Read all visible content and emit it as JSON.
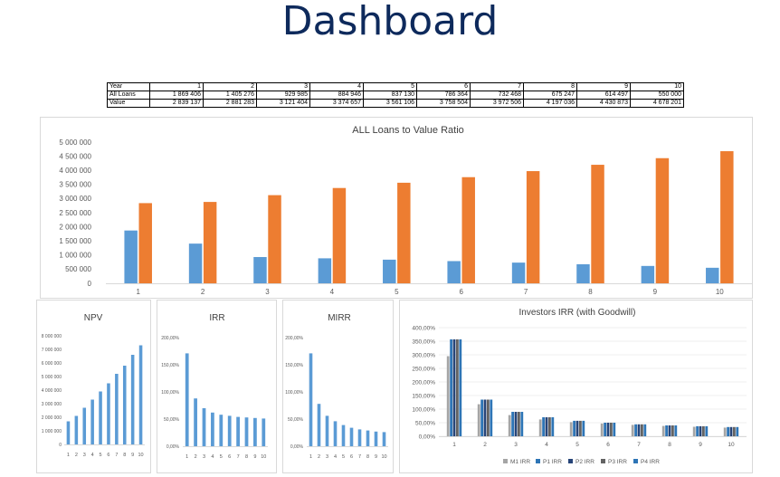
{
  "page": {
    "title": "Dashboard"
  },
  "table": {
    "rows": [
      {
        "label": "Year",
        "values": [
          "1",
          "2",
          "3",
          "4",
          "5",
          "6",
          "7",
          "8",
          "9",
          "10"
        ]
      },
      {
        "label": "All Loans",
        "values": [
          "1 869 406",
          "1 405 276",
          "929 985",
          "884 946",
          "837 130",
          "786 364",
          "732 468",
          "675 247",
          "614 497",
          "550 000"
        ]
      },
      {
        "label": "Value",
        "values": [
          "2 839 137",
          "2 881 283",
          "3 121 404",
          "3 374 657",
          "3 561 106",
          "3 758 504",
          "3 972 506",
          "4 197 036",
          "4 430 873",
          "4 678 201"
        ]
      }
    ]
  },
  "colors": {
    "blue": "#5b9bd5",
    "orange": "#ed7d31",
    "title": "#0e2a5c",
    "grey": "#a5a5a5",
    "darkblue": "#264478",
    "midblue": "#2e75b6",
    "darkgrey": "#636363"
  },
  "chart_data": [
    {
      "type": "bar",
      "title": "ALL Loans to Value Ratio",
      "categories": [
        "1",
        "2",
        "3",
        "4",
        "5",
        "6",
        "7",
        "8",
        "9",
        "10"
      ],
      "series": [
        {
          "values": [
            1869406,
            1405276,
            929985,
            884946,
            837130,
            786364,
            732468,
            675247,
            614497,
            550000
          ]
        },
        {
          "values": [
            2839137,
            2881283,
            3121404,
            3374657,
            3561106,
            3758504,
            3972506,
            4197036,
            4430873,
            4678201
          ]
        }
      ],
      "ylim": [
        0,
        5000000
      ],
      "yticks": [
        "0",
        "500 000",
        "1 000 000",
        "1 500 000",
        "2 000 000",
        "2 500 000",
        "3 000 000",
        "3 500 000",
        "4 000 000",
        "4 500 000",
        "5 000 000"
      ],
      "grid": false
    },
    {
      "type": "bar",
      "title": "NPV",
      "categories": [
        "1",
        "2",
        "3",
        "4",
        "5",
        "6",
        "7",
        "8",
        "9",
        "10"
      ],
      "values": [
        1700000,
        2100000,
        2700000,
        3300000,
        3900000,
        4500000,
        5200000,
        5800000,
        6600000,
        7300000
      ],
      "ylim": [
        0,
        8000000
      ],
      "yticks": [
        "0",
        "1 000 000",
        "2 000 000",
        "3 000 000",
        "4 000 000",
        "5 000 000",
        "6 000 000",
        "7 000 000",
        "8 000 000"
      ]
    },
    {
      "type": "bar",
      "title": "IRR",
      "categories": [
        "1",
        "2",
        "3",
        "4",
        "5",
        "6",
        "7",
        "8",
        "9",
        "10"
      ],
      "values": [
        171,
        88,
        70,
        62,
        58,
        56,
        54,
        53,
        52,
        51
      ],
      "ylim": [
        0,
        200
      ],
      "yticks": [
        "0,00%",
        "50,00%",
        "100,00%",
        "150,00%",
        "200,00%"
      ]
    },
    {
      "type": "bar",
      "title": "MIRR",
      "categories": [
        "1",
        "2",
        "3",
        "4",
        "5",
        "6",
        "7",
        "8",
        "9",
        "10"
      ],
      "values": [
        171,
        78,
        56,
        46,
        39,
        34,
        31,
        29,
        27,
        26
      ],
      "ylim": [
        0,
        200
      ],
      "yticks": [
        "0,00%",
        "50,00%",
        "100,00%",
        "150,00%",
        "200,00%"
      ]
    },
    {
      "type": "bar",
      "title": "Investors IRR (with Goodwill)",
      "categories": [
        "1",
        "2",
        "3",
        "4",
        "5",
        "6",
        "7",
        "8",
        "9",
        "10"
      ],
      "series": [
        {
          "name": "M1 IRR",
          "values": [
            295,
            118,
            78,
            62,
            52,
            47,
            42,
            38,
            35,
            32
          ]
        },
        {
          "name": "P1 IRR",
          "values": [
            357,
            135,
            90,
            70,
            57,
            50,
            44,
            40,
            37,
            34
          ]
        },
        {
          "name": "P2 IRR",
          "values": [
            357,
            135,
            90,
            70,
            57,
            50,
            44,
            40,
            37,
            34
          ]
        },
        {
          "name": "P3 IRR",
          "values": [
            357,
            135,
            90,
            70,
            57,
            50,
            44,
            40,
            37,
            34
          ]
        },
        {
          "name": "P4 IRR",
          "values": [
            357,
            135,
            90,
            70,
            57,
            50,
            44,
            40,
            37,
            34
          ]
        }
      ],
      "ylim": [
        0,
        400
      ],
      "yticks": [
        "0,00%",
        "50,00%",
        "100,00%",
        "150,00%",
        "200,00%",
        "250,00%",
        "300,00%",
        "350,00%",
        "400,00%"
      ],
      "legend": "bottom"
    }
  ]
}
